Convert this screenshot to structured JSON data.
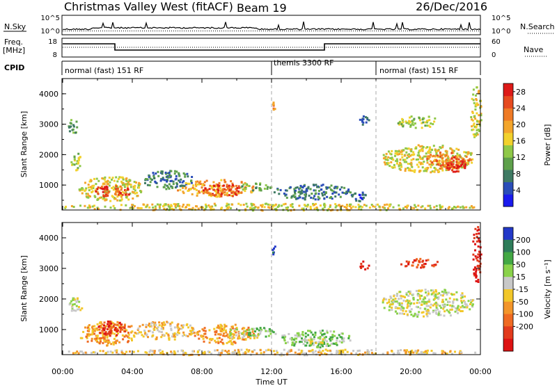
{
  "header": {
    "station": "Christmas Valley West (fitACF)",
    "beam": "Beam 19",
    "date": "26/Dec/2016"
  },
  "strips": {
    "nsky_label": "N.Sky",
    "nsky_ticks": [
      "10^5",
      "10^0"
    ],
    "nsearch_label": "N.Search",
    "freq_label": "Freq.",
    "freq_unit": "[MHz]",
    "freq_ticks": [
      "18",
      "8"
    ],
    "nave_label": "Nave",
    "nave_ticks": [
      "60",
      "0"
    ],
    "cpid_label": "CPID",
    "cpid_segments": [
      "normal (fast) 151 RF",
      "themis 3300 RF",
      "normal (fast) 151 RF"
    ],
    "cpid_boundaries_hours": [
      12,
      18
    ]
  },
  "x_axis": {
    "label": "Time UT",
    "ticks": [
      "00:00",
      "04:00",
      "08:00",
      "12:00",
      "16:00",
      "20:00",
      "00:00"
    ]
  },
  "chart_data": [
    {
      "type": "heatmap",
      "name": "power",
      "ylabel": "Slant Range [km]",
      "yticks": [
        1000,
        2000,
        3000,
        4000
      ],
      "ylim": [
        180,
        4500
      ],
      "xlim_hours": [
        0,
        24
      ],
      "colorbar": {
        "label": "Power [dB]",
        "ticks": [
          "4",
          "8",
          "12",
          "16",
          "20",
          "24",
          "28"
        ],
        "colors": [
          "#1a1aee",
          "#2a4db8",
          "#3f7a63",
          "#5ea04b",
          "#8fc848",
          "#f2d12c",
          "#f3a52b",
          "#ef7a25",
          "#e64a1f",
          "#dd1a18"
        ]
      },
      "regions": [
        {
          "t0": 0.4,
          "t1": 1.0,
          "r0": 1500,
          "r1": 2100,
          "level": 4
        },
        {
          "t0": 0.3,
          "t1": 0.8,
          "r0": 2700,
          "r1": 3200,
          "level": 3
        },
        {
          "t0": 0.9,
          "t1": 4.6,
          "r0": 500,
          "r1": 1300,
          "level": 5
        },
        {
          "t0": 1.6,
          "t1": 4.0,
          "r0": 650,
          "r1": 1000,
          "level": 8
        },
        {
          "t0": 4.6,
          "t1": 7.5,
          "r0": 900,
          "r1": 1500,
          "level": 2
        },
        {
          "t0": 6.5,
          "t1": 11.0,
          "r0": 650,
          "r1": 1200,
          "level": 6
        },
        {
          "t0": 8.0,
          "t1": 10.4,
          "r0": 650,
          "r1": 1050,
          "level": 8
        },
        {
          "t0": 10.0,
          "t1": 12.0,
          "r0": 850,
          "r1": 1100,
          "level": 3
        },
        {
          "t0": 12.1,
          "t1": 16.5,
          "r0": 550,
          "r1": 1050,
          "level": 2
        },
        {
          "t0": 16.5,
          "t1": 17.5,
          "r0": 500,
          "r1": 800,
          "level": 1
        },
        {
          "t0": 18.3,
          "t1": 23.6,
          "r0": 1450,
          "r1": 2350,
          "level": 5
        },
        {
          "t0": 20.8,
          "t1": 23.4,
          "r0": 1550,
          "r1": 2150,
          "level": 7
        },
        {
          "t0": 22.0,
          "t1": 23.1,
          "r0": 1450,
          "r1": 1950,
          "level": 9
        },
        {
          "t0": 19.2,
          "t1": 21.6,
          "r0": 2900,
          "r1": 3300,
          "level": 4
        },
        {
          "t0": 0.0,
          "t1": 23.8,
          "r0": 190,
          "r1": 420,
          "level": 5
        },
        {
          "t0": 12.0,
          "t1": 12.2,
          "r0": 3500,
          "r1": 3800,
          "level": 7
        },
        {
          "t0": 23.4,
          "t1": 24.0,
          "r0": 2500,
          "r1": 4300,
          "level": 5
        },
        {
          "t0": 17.0,
          "t1": 17.6,
          "r0": 3000,
          "r1": 3300,
          "level": 2
        }
      ]
    },
    {
      "type": "heatmap",
      "name": "velocity",
      "ylabel": "Slant Range [km]",
      "yticks": [
        1000,
        2000,
        3000,
        4000
      ],
      "ylim": [
        180,
        4500
      ],
      "xlim_hours": [
        0,
        24
      ],
      "colorbar": {
        "label": "Velocity [m s⁻¹]",
        "ticks": [
          "200",
          "100",
          "50",
          "15",
          "-15",
          "-50",
          "-100",
          "-200"
        ],
        "colors": [
          "#2238c8",
          "#2e7c5a",
          "#43a844",
          "#8ad24a",
          "#c8c8c8",
          "#f2c72a",
          "#f3952a",
          "#ef6a22",
          "#e23a1c",
          "#dd1212"
        ]
      },
      "regions": [
        {
          "t0": 0.3,
          "t1": 1.1,
          "r0": 1600,
          "r1": 2100,
          "level": 4
        },
        {
          "t0": 0.9,
          "t1": 4.2,
          "r0": 500,
          "r1": 1300,
          "level": 6
        },
        {
          "t0": 2.0,
          "t1": 3.6,
          "r0": 800,
          "r1": 1300,
          "level": 8
        },
        {
          "t0": 4.2,
          "t1": 7.5,
          "r0": 700,
          "r1": 1300,
          "level": 5
        },
        {
          "t0": 7.5,
          "t1": 11.2,
          "r0": 550,
          "r1": 1200,
          "level": 6
        },
        {
          "t0": 9.4,
          "t1": 10.4,
          "r0": 700,
          "r1": 1050,
          "level": 4
        },
        {
          "t0": 10.4,
          "t1": 12.4,
          "r0": 800,
          "r1": 1100,
          "level": 3
        },
        {
          "t0": 12.4,
          "t1": 16.5,
          "r0": 450,
          "r1": 1000,
          "level": 3
        },
        {
          "t0": 13.8,
          "t1": 15.2,
          "r0": 550,
          "r1": 800,
          "level": 4
        },
        {
          "t0": 18.3,
          "t1": 23.6,
          "r0": 1450,
          "r1": 2350,
          "level": 4
        },
        {
          "t0": 19.4,
          "t1": 21.6,
          "r0": 3050,
          "r1": 3350,
          "level": 8
        },
        {
          "t0": 0.0,
          "t1": 23.8,
          "r0": 190,
          "r1": 380,
          "level": 5
        },
        {
          "t0": 12.0,
          "t1": 12.2,
          "r0": 3400,
          "r1": 3800,
          "level": 0
        },
        {
          "t0": 23.5,
          "t1": 24.0,
          "r0": 2500,
          "r1": 4400,
          "level": 9
        },
        {
          "t0": 17.0,
          "t1": 17.6,
          "r0": 3000,
          "r1": 3300,
          "level": 8
        }
      ]
    }
  ]
}
